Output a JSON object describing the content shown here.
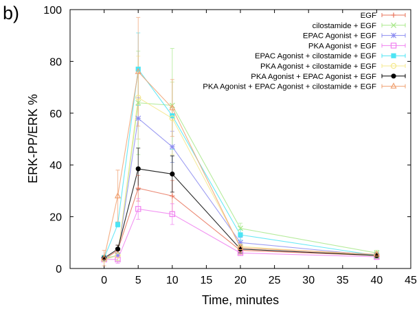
{
  "panel_label": "b)",
  "chart_data": {
    "type": "line",
    "xlabel": "Time, minutes",
    "ylabel": "ERK-PP/ERK %",
    "xlim": [
      -5,
      45
    ],
    "ylim": [
      0,
      100
    ],
    "xticks": [
      0,
      5,
      10,
      15,
      20,
      25,
      30,
      35,
      40,
      45
    ],
    "yticks": [
      0,
      20,
      40,
      60,
      80,
      100
    ],
    "grid": false,
    "legend_position": "top-right",
    "x": [
      0,
      2,
      5,
      10,
      20,
      40
    ],
    "series": [
      {
        "name": "EGF",
        "color": "#e8735a",
        "marker": "plus",
        "values": [
          3.5,
          7,
          31,
          28,
          7,
          5
        ],
        "errors": [
          1,
          2,
          5,
          6,
          1.5,
          1
        ]
      },
      {
        "name": "cilostamide + EGF",
        "color": "#a8e88a",
        "marker": "cross",
        "values": [
          4,
          5,
          64,
          63,
          15.5,
          6
        ],
        "errors": [
          1,
          2,
          20,
          22,
          2,
          1
        ]
      },
      {
        "name": "EPAC Agonist + EGF",
        "color": "#8c8cf0",
        "marker": "star",
        "values": [
          3.5,
          5,
          58,
          47,
          10,
          5
        ],
        "errors": [
          1,
          2,
          8,
          6,
          2,
          1
        ]
      },
      {
        "name": "PKA Agonist + EGF",
        "color": "#f080f0",
        "marker": "square",
        "values": [
          3.5,
          3.5,
          23,
          21,
          6,
          4.5
        ],
        "errors": [
          1,
          1.5,
          4,
          4,
          1,
          1
        ]
      },
      {
        "name": "EPAC Agonist + cilostamide + EGF",
        "color": "#4ce4f4",
        "marker": "filled-square",
        "values": [
          4,
          17,
          77,
          59,
          13,
          5
        ],
        "errors": [
          1,
          1,
          14,
          13,
          2,
          1
        ]
      },
      {
        "name": "PKA Agonist + cilostamide + EGF",
        "color": "#f4e88c",
        "marker": "circle",
        "values": [
          3.5,
          5,
          66,
          58,
          8.5,
          5
        ],
        "errors": [
          1,
          2,
          16,
          14,
          1.5,
          1
        ]
      },
      {
        "name": "PKA Agonist + EPAC Agonist + EGF",
        "color": "#000000",
        "marker": "filled-circle",
        "values": [
          4,
          7.5,
          38.5,
          36.5,
          7.5,
          5
        ],
        "errors": [
          1,
          1.5,
          8,
          7,
          1.5,
          1
        ]
      },
      {
        "name": "PKA Agonist + EPAC Agonist + cilostamide + EGF",
        "color": "#f0a070",
        "marker": "triangle",
        "values": [
          4,
          28,
          76,
          62,
          8,
          5.5
        ],
        "errors": [
          3,
          10,
          21,
          11,
          1.5,
          1
        ]
      }
    ]
  }
}
